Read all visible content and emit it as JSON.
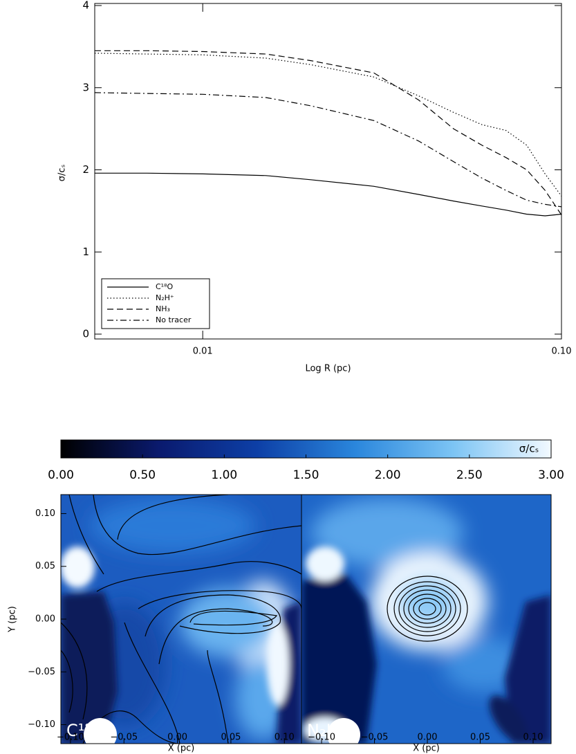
{
  "chart_data": [
    {
      "type": "line",
      "xlabel": "Log R (pc)",
      "ylabel": "σ/cₛ",
      "xscale": "log",
      "x": [
        0.005,
        0.007,
        0.01,
        0.015,
        0.02,
        0.03,
        0.04,
        0.05,
        0.06,
        0.07,
        0.08,
        0.09,
        0.1
      ],
      "xlim": [
        0.005,
        0.1
      ],
      "xticks": [
        {
          "value": 0.01,
          "label": "0.01"
        },
        {
          "value": 0.1,
          "label": "0.10"
        }
      ],
      "ylim": [
        0,
        4
      ],
      "yticks": [
        0,
        1,
        2,
        3,
        4
      ],
      "legend": "lower left",
      "series": [
        {
          "name": "C¹⁸O",
          "color": "#000000",
          "style": "solid",
          "values": [
            1.96,
            1.96,
            1.95,
            1.93,
            1.88,
            1.8,
            1.7,
            1.62,
            1.56,
            1.51,
            1.46,
            1.44,
            1.46
          ]
        },
        {
          "name": "N₂H⁺",
          "color": "#000000",
          "style": "dotted",
          "values": [
            3.42,
            3.41,
            3.4,
            3.36,
            3.28,
            3.13,
            2.9,
            2.7,
            2.55,
            2.48,
            2.3,
            1.95,
            1.68
          ]
        },
        {
          "name": "NH₃",
          "color": "#000000",
          "style": "dashed",
          "values": [
            3.45,
            3.45,
            3.44,
            3.41,
            3.33,
            3.18,
            2.85,
            2.5,
            2.3,
            2.15,
            2.0,
            1.75,
            1.45
          ]
        },
        {
          "name": "No tracer",
          "color": "#000000",
          "style": "dashdot",
          "values": [
            2.94,
            2.93,
            2.92,
            2.88,
            2.78,
            2.6,
            2.35,
            2.1,
            1.9,
            1.75,
            1.63,
            1.58,
            1.55
          ]
        }
      ]
    },
    {
      "type": "colorbar",
      "label": "σ/cₛ",
      "xlim": [
        0,
        3
      ],
      "xticks": [
        {
          "value": 0,
          "label": "0.00"
        },
        {
          "value": 0.5,
          "label": "0.50"
        },
        {
          "value": 1,
          "label": "1.00"
        },
        {
          "value": 1.5,
          "label": "1.50"
        },
        {
          "value": 2,
          "label": "2.00"
        },
        {
          "value": 2.5,
          "label": "2.50"
        },
        {
          "value": 3,
          "label": "3.00"
        }
      ],
      "colors": [
        "#000000",
        "#0a1a6e",
        "#0d3fa6",
        "#2a86dc",
        "#7cc4f4",
        "#f2f9ff"
      ]
    },
    {
      "type": "image",
      "label": "C¹⁸O",
      "xlabel": "X (pc)",
      "ylabel": "Y (pc)",
      "xlim": [
        -0.109,
        0.116
      ],
      "ylim": [
        -0.118,
        0.118
      ],
      "xticks": [
        {
          "value": -0.1,
          "label": "−0.10"
        },
        {
          "value": -0.05,
          "label": "−0.05"
        },
        {
          "value": 0,
          "label": "0.00"
        },
        {
          "value": 0.05,
          "label": "0.05"
        },
        {
          "value": 0.1,
          "label": "0.10"
        }
      ],
      "yticks": [
        {
          "value": -0.1,
          "label": "−0.10"
        },
        {
          "value": -0.05,
          "label": "−0.05"
        },
        {
          "value": 0,
          "label": "0.00"
        },
        {
          "value": 0.05,
          "label": "0.05"
        },
        {
          "value": 0.1,
          "label": "0.10"
        }
      ]
    },
    {
      "type": "image",
      "label": "N₂H⁺",
      "xlabel": "X (pc)",
      "xlim": [
        -0.119,
        0.117
      ],
      "ylim": [
        -0.118,
        0.118
      ],
      "xticks": [
        {
          "value": -0.1,
          "label": "−0.10"
        },
        {
          "value": -0.05,
          "label": "−0.05"
        },
        {
          "value": 0,
          "label": "0.00"
        },
        {
          "value": 0.05,
          "label": "0.05"
        },
        {
          "value": 0.1,
          "label": "0.10"
        }
      ]
    }
  ]
}
